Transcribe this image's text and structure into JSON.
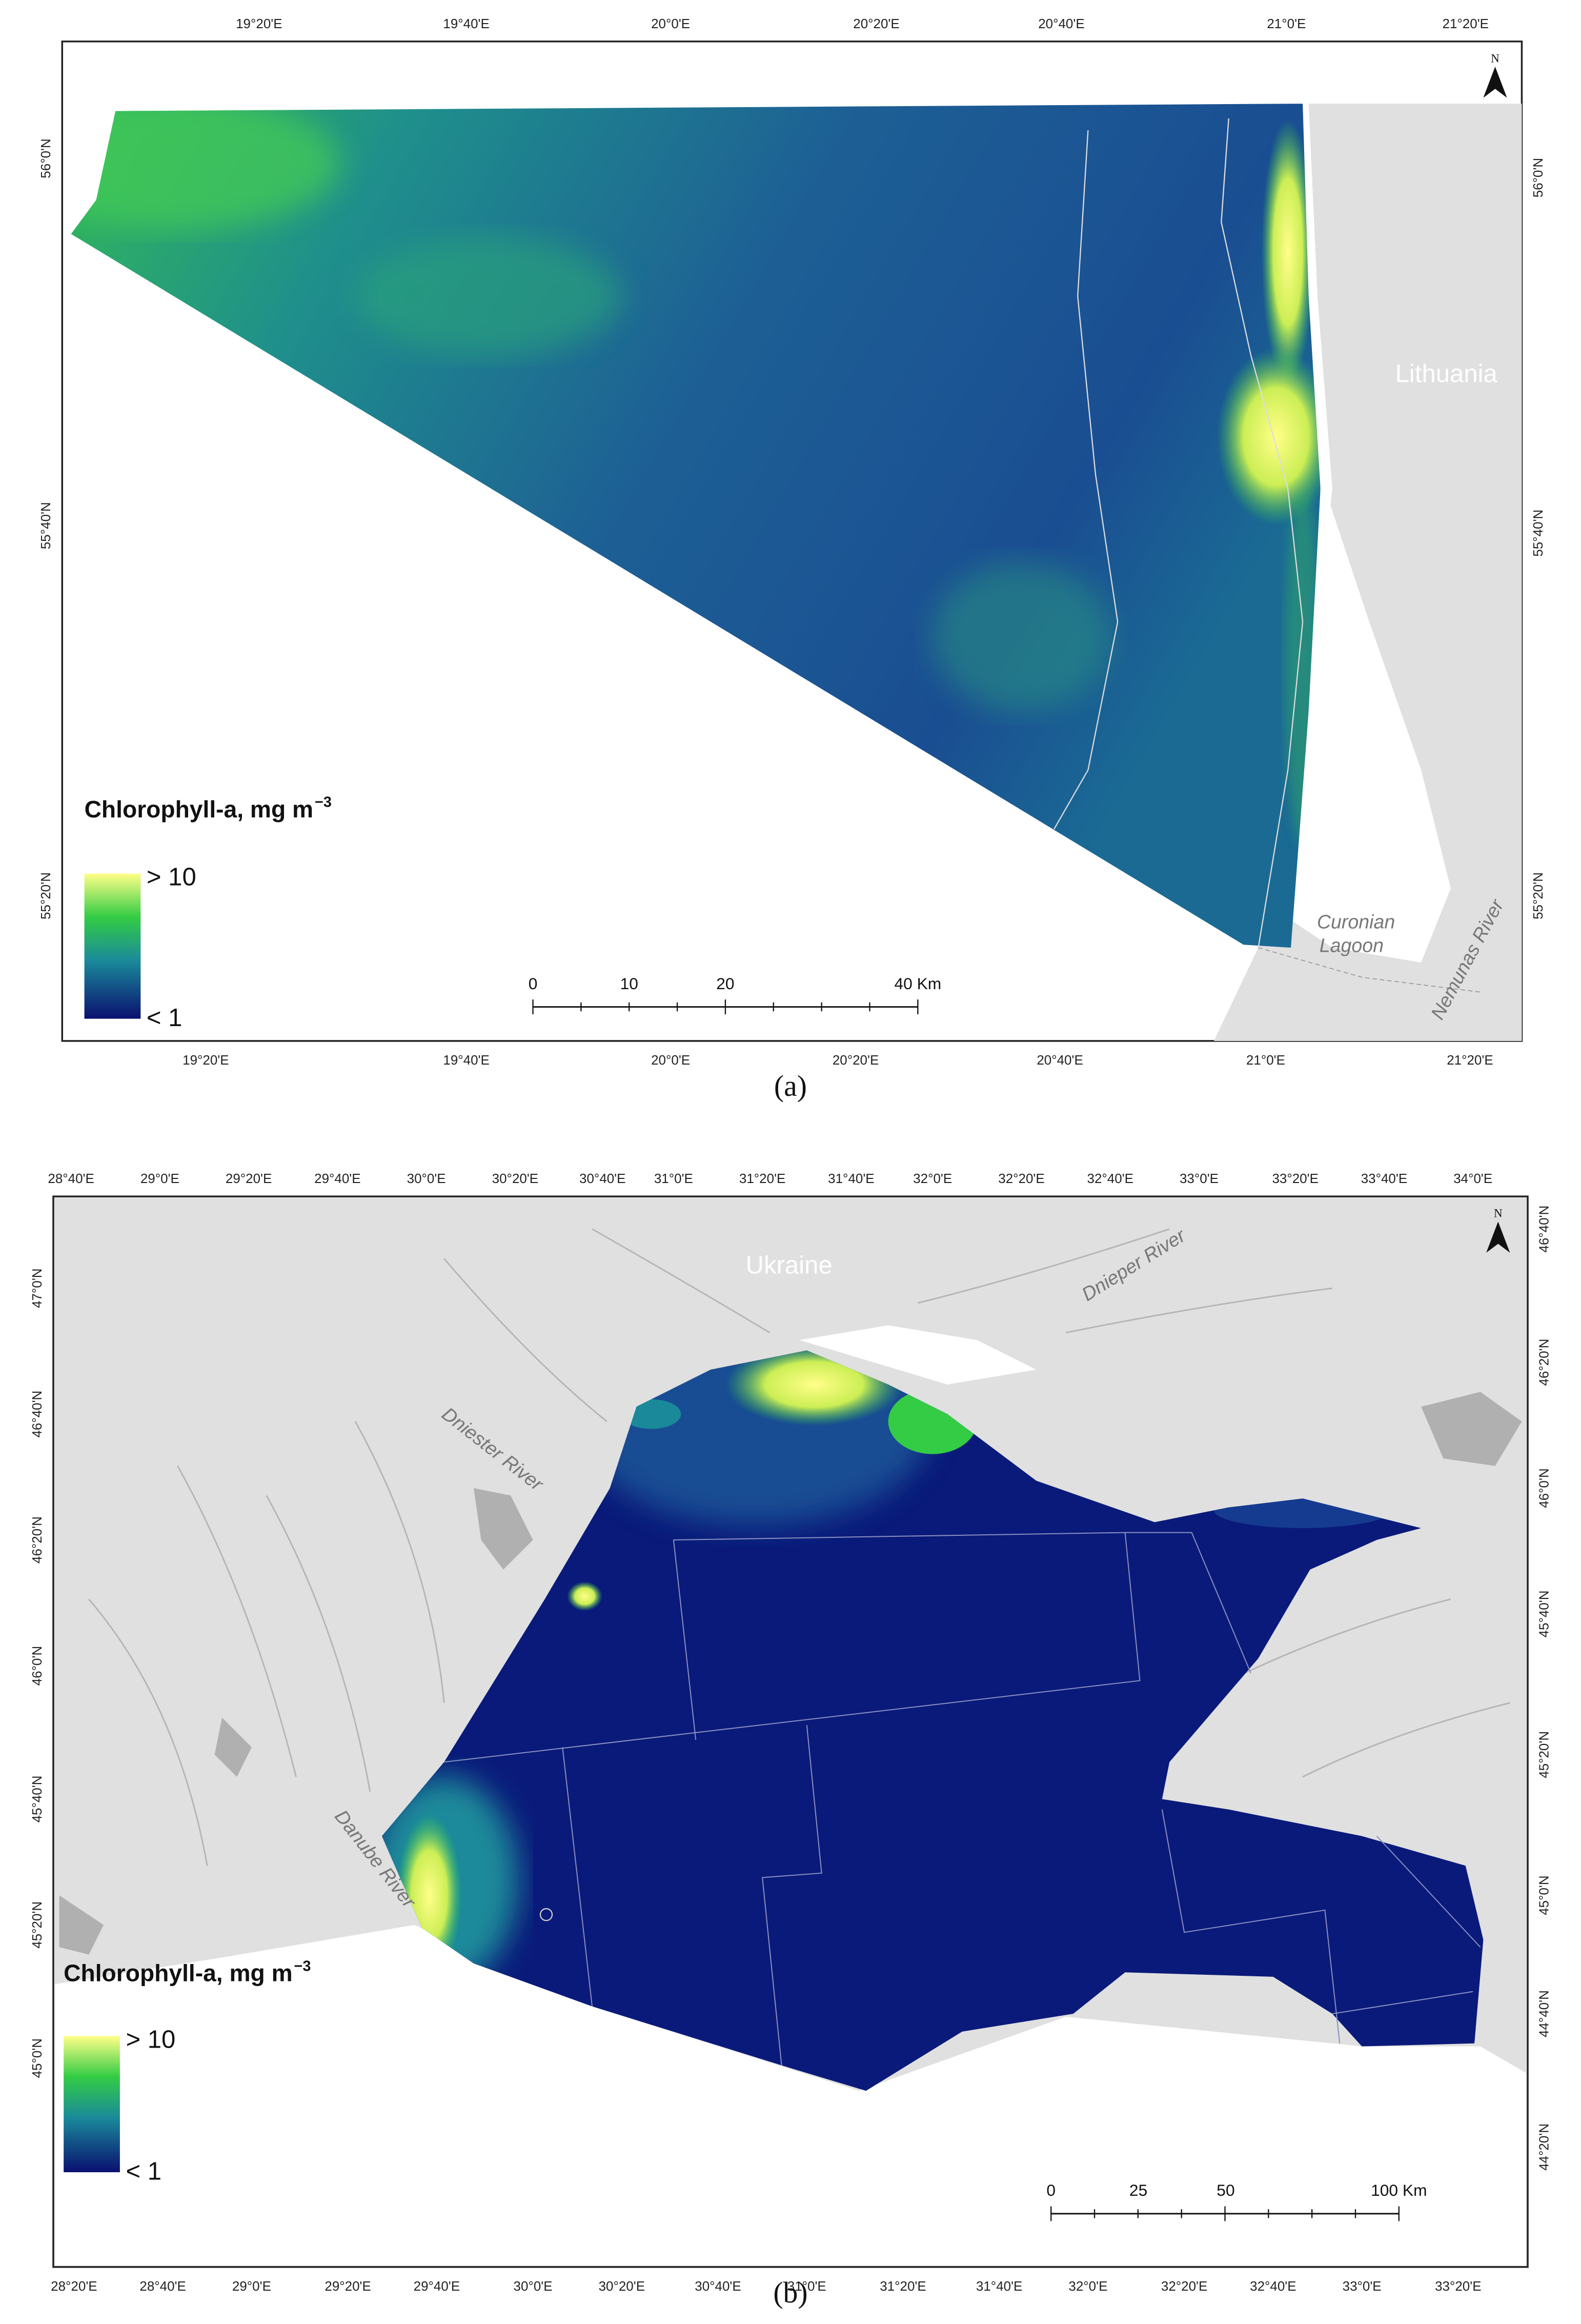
{
  "panels": [
    {
      "label": "(a)",
      "top_ticks": [
        "19°20'E",
        "19°40'E",
        "20°0'E",
        "20°20'E",
        "20°40'E",
        "21°0'E",
        "21°20'E"
      ],
      "bottom_ticks": [
        "19°20'E",
        "19°40'E",
        "20°0'E",
        "20°20'E",
        "20°40'E",
        "21°0'E",
        "21°20'E"
      ],
      "left_ticks": [
        "56°0'N",
        "55°40'N",
        "55°20'N"
      ],
      "right_ticks": [
        "56°0'N",
        "55°40'N",
        "55°20'N"
      ],
      "legend": {
        "title": "Chlorophyll-a, mg m",
        "title_sup": "−3",
        "high": "> 10",
        "low": "< 1"
      },
      "scale_bar": [
        "0",
        "10",
        "20",
        "40 Km"
      ],
      "north": "N",
      "country": "Lithuania",
      "places": [
        "Curonian",
        "Lagoon",
        "Nemunas River"
      ]
    },
    {
      "label": "(b)",
      "top_ticks": [
        "28°40'E",
        "29°0'E",
        "29°20'E",
        "29°40'E",
        "30°0'E",
        "30°20'E",
        "30°40'E",
        "31°0'E",
        "31°20'E",
        "31°40'E",
        "32°0'E",
        "32°20'E",
        "32°40'E",
        "33°0'E",
        "33°20'E",
        "33°40'E",
        "34°0'E"
      ],
      "bottom_ticks": [
        "28°20'E",
        "28°40'E",
        "29°0'E",
        "29°20'E",
        "29°40'E",
        "30°0'E",
        "30°20'E",
        "30°40'E",
        "31°0'E",
        "31°20'E",
        "31°40'E",
        "32°0'E",
        "32°20'E",
        "32°40'E",
        "33°0'E",
        "33°20'E"
      ],
      "left_ticks": [
        "47°0'N",
        "46°40'N",
        "46°20'N",
        "46°0'N",
        "45°40'N",
        "45°20'N",
        "45°0'N"
      ],
      "right_ticks": [
        "46°40'N",
        "46°20'N",
        "46°0'N",
        "45°40'N",
        "45°20'N",
        "45°0'N",
        "44°40'N",
        "44°20'N"
      ],
      "legend": {
        "title": "Chlorophyll-a, mg m",
        "title_sup": "−3",
        "high": "> 10",
        "low": "< 1"
      },
      "scale_bar": [
        "0",
        "25",
        "50",
        "100 Km"
      ],
      "north": "N",
      "country": "Ukraine",
      "places": [
        "Dniester River",
        "Dnieper River",
        "Danube River"
      ]
    }
  ]
}
